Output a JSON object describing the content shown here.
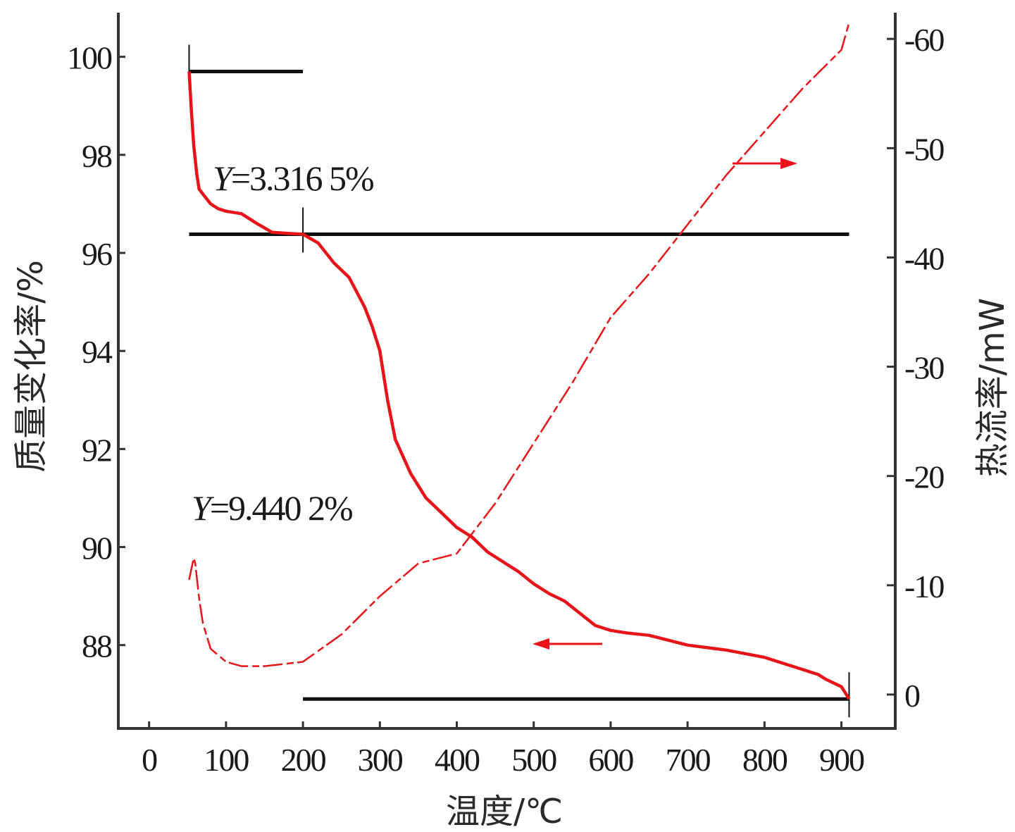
{
  "chart_data": {
    "type": "line",
    "xlabel": "温度/℃",
    "ylabel_left": "质量变化率/%",
    "ylabel_right": "热流率/mW",
    "x_ticks": [
      "0",
      "100",
      "200",
      "300",
      "400",
      "500",
      "600",
      "700",
      "800",
      "900"
    ],
    "y_left_ticks": [
      "100",
      "98",
      "96",
      "94",
      "92",
      "90",
      "88"
    ],
    "y_right_ticks": [
      "-60",
      "-50",
      "-40",
      "-30",
      "-20",
      "-10",
      "0"
    ],
    "xlim": [
      -40,
      970
    ],
    "ylim_left": [
      86.3,
      100.9
    ],
    "ylim_right": [
      3.1,
      -62.4
    ],
    "series": [
      {
        "axis": "left",
        "color": "#e8141a",
        "x": [
          52,
          55,
          58,
          62,
          65,
          70,
          80,
          90,
          100,
          120,
          140,
          160,
          180,
          200,
          220,
          240,
          260,
          280,
          290,
          300,
          310,
          320,
          340,
          360,
          380,
          400,
          420,
          440,
          460,
          480,
          500,
          520,
          540,
          560,
          580,
          600,
          620,
          650,
          700,
          750,
          800,
          850,
          870,
          880,
          900,
          910
        ],
        "values": [
          99.7,
          98.9,
          98.2,
          97.6,
          97.3,
          97.2,
          97.0,
          96.9,
          96.85,
          96.8,
          96.6,
          96.42,
          96.4,
          96.38,
          96.2,
          95.8,
          95.5,
          94.9,
          94.5,
          94.0,
          93.0,
          92.2,
          91.5,
          91.0,
          90.7,
          90.4,
          90.2,
          89.9,
          89.7,
          89.5,
          89.25,
          89.05,
          88.9,
          88.65,
          88.4,
          88.3,
          88.25,
          88.2,
          88.0,
          87.9,
          87.75,
          87.5,
          87.4,
          87.3,
          87.15,
          86.9
        ]
      },
      {
        "axis": "right",
        "color": "#e8141a",
        "x": [
          52,
          58,
          60,
          65,
          70,
          80,
          100,
          120,
          150,
          200,
          250,
          300,
          350,
          400,
          450,
          500,
          550,
          600,
          650,
          700,
          750,
          800,
          850,
          900,
          910
        ],
        "values": [
          -10.5,
          -12.5,
          -12.0,
          -8.8,
          -6.5,
          -4.2,
          -3.0,
          -2.6,
          -2.6,
          -3.0,
          -5.5,
          -9.0,
          -12.0,
          -12.9,
          -17.5,
          -23.0,
          -28.5,
          -34.5,
          -38.5,
          -43.0,
          -47.5,
          -51.5,
          -55.5,
          -59.0,
          -61.5
        ]
      }
    ],
    "annotations": [
      {
        "italic": "Y",
        "text": "=3.316 5%"
      },
      {
        "italic": "Y",
        "text": "=9.440 2%"
      }
    ],
    "reference_lines": [
      {
        "axis": "left",
        "x": [
          52,
          200
        ],
        "value": 99.7
      },
      {
        "axis": "left",
        "x": [
          52,
          910
        ],
        "value": 96.38
      },
      {
        "axis": "left",
        "x": [
          200,
          910
        ],
        "value": 86.9
      }
    ],
    "grid": false,
    "legend": "none",
    "colors": {
      "curve": "#e8141a",
      "axes": "#333333",
      "reference": "#111111"
    }
  }
}
